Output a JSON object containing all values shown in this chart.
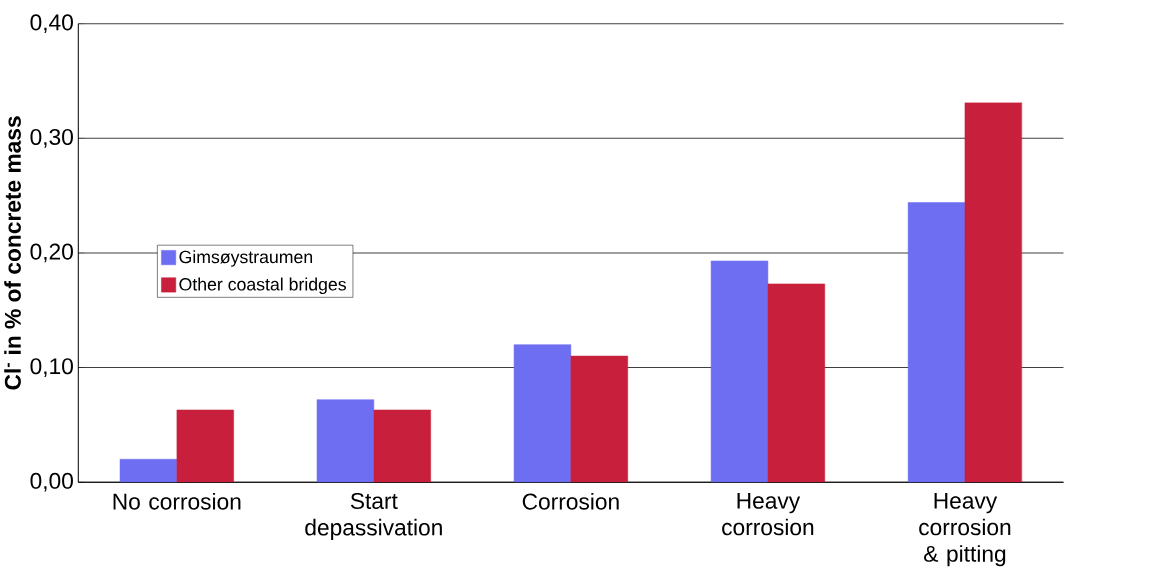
{
  "chart_data": {
    "type": "bar",
    "ylabel": "Cl$^{-}$ in % of concrete mass",
    "categories": [
      "No corrosion",
      "Start depassivation",
      "Corrosion",
      "Heavy corrosion",
      "Heavy corrosion & pitting"
    ],
    "series": [
      {
        "name": "Gimsøystraumen",
        "color": "#6e6ef2",
        "values": [
          0.02,
          0.072,
          0.12,
          0.193,
          0.244
        ]
      },
      {
        "name": "Other coastal bridges",
        "color": "#c8203c",
        "values": [
          0.063,
          0.063,
          0.11,
          0.173,
          0.331
        ]
      }
    ],
    "ylim": [
      0,
      0.4
    ],
    "yticks": [
      {
        "value": 0,
        "label": "0,00"
      },
      {
        "value": 0.1,
        "label": "0,10"
      },
      {
        "value": 0.2,
        "label": "0,20"
      },
      {
        "value": 0.3,
        "label": "0,30"
      },
      {
        "value": 0.4,
        "label": "0,40"
      }
    ],
    "grid": "y",
    "legend": "left"
  }
}
